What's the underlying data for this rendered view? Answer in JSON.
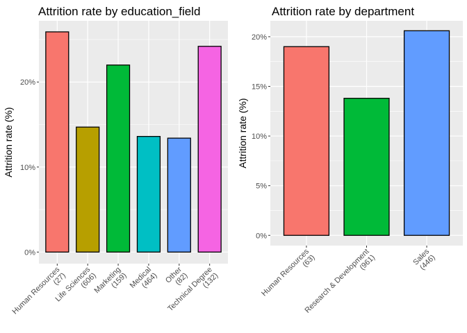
{
  "chart_data": [
    {
      "type": "bar",
      "title": "Attrition rate by education_field",
      "xlabel": "",
      "ylabel": "Attrition rate (%)",
      "categories": [
        {
          "name": "Human Resources",
          "count": "(27)"
        },
        {
          "name": "Life Sciences",
          "count": "(606)"
        },
        {
          "name": "Marketing",
          "count": "(159)"
        },
        {
          "name": "Medical",
          "count": "(464)"
        },
        {
          "name": "Other",
          "count": "(82)"
        },
        {
          "name": "Technical Degree",
          "count": "(132)"
        }
      ],
      "values": [
        25.9,
        14.7,
        22.0,
        13.6,
        13.4,
        24.2
      ],
      "colors": [
        "#F8766D",
        "#B79F00",
        "#00BA38",
        "#00BFC4",
        "#619CFF",
        "#F564E3"
      ],
      "ylim": [
        0,
        27.2
      ],
      "yticks": [
        0,
        10,
        20
      ],
      "ytick_labels": [
        "0%",
        "10%",
        "20%"
      ],
      "grid": true,
      "legend": "none"
    },
    {
      "type": "bar",
      "title": "Attrition rate by department",
      "xlabel": "",
      "ylabel": "Attrition rate (%)",
      "categories": [
        {
          "name": "Human Resources",
          "count": "(63)"
        },
        {
          "name": "Research & Development",
          "count": "(961)"
        },
        {
          "name": "Sales",
          "count": "(446)"
        }
      ],
      "values": [
        19.0,
        13.8,
        20.6
      ],
      "colors": [
        "#F8766D",
        "#00BA38",
        "#619CFF"
      ],
      "ylim": [
        -1.03,
        21.6
      ],
      "yticks": [
        0,
        5,
        10,
        15,
        20
      ],
      "ytick_labels": [
        "0%",
        "5%",
        "10%",
        "15%",
        "20%"
      ],
      "grid": true,
      "legend": "none"
    }
  ]
}
